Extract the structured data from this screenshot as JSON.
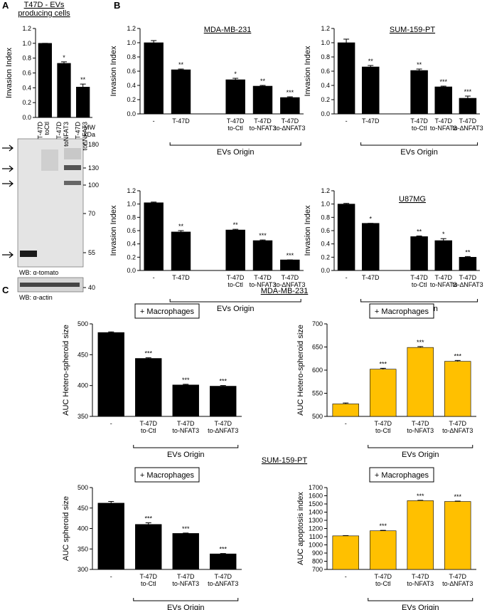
{
  "panel_labels": [
    "A",
    "B",
    "C"
  ],
  "section_titles": [
    "MDA-MB-231",
    "SUM-159-PT"
  ],
  "blot": {
    "mw_header": [
      "MW",
      "kDa"
    ],
    "mw_markers": [
      180,
      130,
      100,
      70,
      55,
      40
    ],
    "wb_labels": [
      "WB: α-tomato",
      "WB: α-actin"
    ]
  },
  "chart_data": [
    {
      "type": "bar",
      "title": "T47D - EVs\nproducing cells",
      "y_label": "Invasion Index",
      "color": "#000000",
      "categories": [
        "T-47D\ntoCtl",
        "T-47D\ntoNFAT3",
        "T-47D\nto∆NFAT3"
      ],
      "values": [
        1.0,
        0.73,
        0.41
      ],
      "errors": [
        0,
        0.02,
        0.04
      ],
      "sig": [
        null,
        "*",
        "**"
      ],
      "ylim": [
        0,
        1.2
      ],
      "yticks": [
        {
          "value": 0,
          "label": "0.0"
        },
        0.2,
        0.4,
        0.6,
        0.8,
        {
          "value": 1,
          "label": "1.0"
        },
        1.2
      ]
    },
    {
      "type": "bar",
      "title": "MDA-MB-231",
      "y_label": "Invasion Index",
      "x_label": "EVs Origin",
      "color": "#000000",
      "categories": [
        "-",
        "T-47D",
        null,
        "T-47D\nto-Ctl",
        "T-47D\nto-NFAT3",
        "T-47D\nto-∆NFAT3"
      ],
      "values": [
        1.0,
        0.62,
        null,
        0.48,
        0.39,
        0.23
      ],
      "errors": [
        0.03,
        0.01,
        null,
        0.02,
        0.01,
        0.01
      ],
      "sig": [
        null,
        "**",
        null,
        "*",
        "**",
        "***"
      ],
      "ylim": [
        0,
        1.2
      ],
      "yticks": [
        {
          "value": 0,
          "label": "0.0"
        },
        0.2,
        0.4,
        0.6,
        0.8,
        {
          "value": 1,
          "label": "1.0"
        },
        1.2
      ]
    },
    {
      "type": "bar",
      "title": "SUM-159-PT",
      "y_label": "Invasion Index",
      "x_label": "EVs Origin",
      "color": "#000000",
      "categories": [
        "-",
        "T-47D",
        null,
        "T-47D\nto-Ctl",
        "T-47D\nto-NFAT3",
        "T-47D\nto-∆NFAT3"
      ],
      "values": [
        1.0,
        0.66,
        null,
        0.61,
        0.38,
        0.22
      ],
      "errors": [
        0.05,
        0.02,
        null,
        0.02,
        0.01,
        0.03
      ],
      "sig": [
        null,
        "**",
        null,
        "**",
        "***",
        "***"
      ],
      "ylim": [
        0,
        1.2
      ],
      "yticks": [
        {
          "value": 0,
          "label": "0.0"
        },
        0.2,
        0.4,
        0.6,
        0.8,
        {
          "value": 1,
          "label": "1.0"
        },
        1.2
      ]
    },
    {
      "type": "bar",
      "y_label": "Invasion Index",
      "x_label": "EVs Origin",
      "color": "#000000",
      "categories": [
        "-",
        "T-47D",
        null,
        "T-47D\nto-Ctl",
        "T-47D\nto-NFAT3",
        "T-47D\nto-∆NFAT3"
      ],
      "values": [
        1.02,
        0.58,
        null,
        0.61,
        0.45,
        0.16
      ],
      "errors": [
        0.01,
        0.02,
        null,
        0.01,
        0.01,
        0
      ],
      "sig": [
        null,
        "**",
        null,
        "**",
        "***",
        "***"
      ],
      "ylim": [
        0,
        1.2
      ],
      "yticks": [
        {
          "value": 0,
          "label": "0.0"
        },
        0.2,
        0.4,
        0.6,
        0.8,
        {
          "value": 1,
          "label": "1.0"
        },
        1.2
      ]
    },
    {
      "type": "bar",
      "title": "U87MG",
      "y_label": "Invasion Index",
      "x_label": "EVs Origin",
      "color": "#000000",
      "categories": [
        "-",
        "T-47D",
        null,
        "T-47D\nto-Ctl",
        "T-47D\nto-NFAT3",
        "T-47D\nto-∆NFAT3"
      ],
      "values": [
        1.0,
        0.71,
        null,
        0.51,
        0.45,
        0.2
      ],
      "errors": [
        0.01,
        0,
        null,
        0.01,
        0.03,
        0.01
      ],
      "sig": [
        null,
        "*",
        null,
        "**",
        "*",
        "**"
      ],
      "ylim": [
        0,
        1.2
      ],
      "yticks": [
        {
          "value": 0,
          "label": "0.0"
        },
        0.2,
        0.4,
        0.6,
        0.8,
        {
          "value": 1,
          "label": "1.0"
        },
        1.2
      ]
    },
    {
      "type": "bar",
      "annotation": "+ Macrophages",
      "y_label": "AUC Hetero-spheroid size",
      "x_label": "EVs Origin",
      "color": "#000000",
      "categories": [
        "-",
        "T-47D\nto-Ctl",
        "T-47D\nto-NFAT3",
        "T-47D\nto-∆NFAT3"
      ],
      "values": [
        486,
        444,
        401,
        399
      ],
      "errors": [
        1,
        1,
        1,
        1
      ],
      "sig": [
        null,
        "***",
        "***",
        "***"
      ],
      "ylim": [
        350,
        500
      ],
      "yticks": [
        350,
        400,
        450,
        500
      ]
    },
    {
      "type": "bar",
      "annotation": "+ Macrophages",
      "y_label": "AUC Hetero-spheroid size",
      "x_label": "EVs Origin",
      "color": "#ffc000",
      "categories": [
        "-",
        "T-47D\nto-Ctl",
        "T-47D\nto-NFAT3",
        "T-47D\nto-∆NFAT3"
      ],
      "values": [
        527,
        602,
        649,
        619
      ],
      "errors": [
        2,
        2,
        2,
        2
      ],
      "sig": [
        null,
        "***",
        "***",
        "***"
      ],
      "ylim": [
        500,
        700
      ],
      "yticks": [
        500,
        550,
        600,
        650,
        700
      ]
    },
    {
      "type": "bar",
      "annotation": "+ Macrophages",
      "y_label": "AUC spheroid size",
      "x_label": "EVs Origin",
      "color": "#000000",
      "categories": [
        "-",
        "T-47D\nto-Ctl",
        "T-47D\nto-NFAT3",
        "T-47D\nto-∆NFAT3"
      ],
      "values": [
        462,
        410,
        388,
        338
      ],
      "errors": [
        4,
        4,
        1,
        1
      ],
      "sig": [
        null,
        "***",
        "***",
        "***"
      ],
      "ylim": [
        300,
        500
      ],
      "yticks": [
        300,
        350,
        400,
        450,
        500
      ]
    },
    {
      "type": "bar",
      "annotation": "+ Macrophages",
      "y_label": "AUC apoptosis index",
      "x_label": "EVs Origin",
      "color": "#ffc000",
      "categories": [
        "-",
        "T-47D\nto-Ctl",
        "T-47D\nto-NFAT3",
        "T-47D\nto-∆NFAT3"
      ],
      "values": [
        1110,
        1172,
        1540,
        1530
      ],
      "errors": [
        3,
        5,
        5,
        5
      ],
      "sig": [
        null,
        "***",
        "***",
        "***"
      ],
      "ylim": [
        700,
        1700
      ],
      "yticks": [
        700,
        800,
        900,
        1000,
        1100,
        1200,
        1300,
        1400,
        1500,
        1600,
        1700
      ]
    }
  ]
}
